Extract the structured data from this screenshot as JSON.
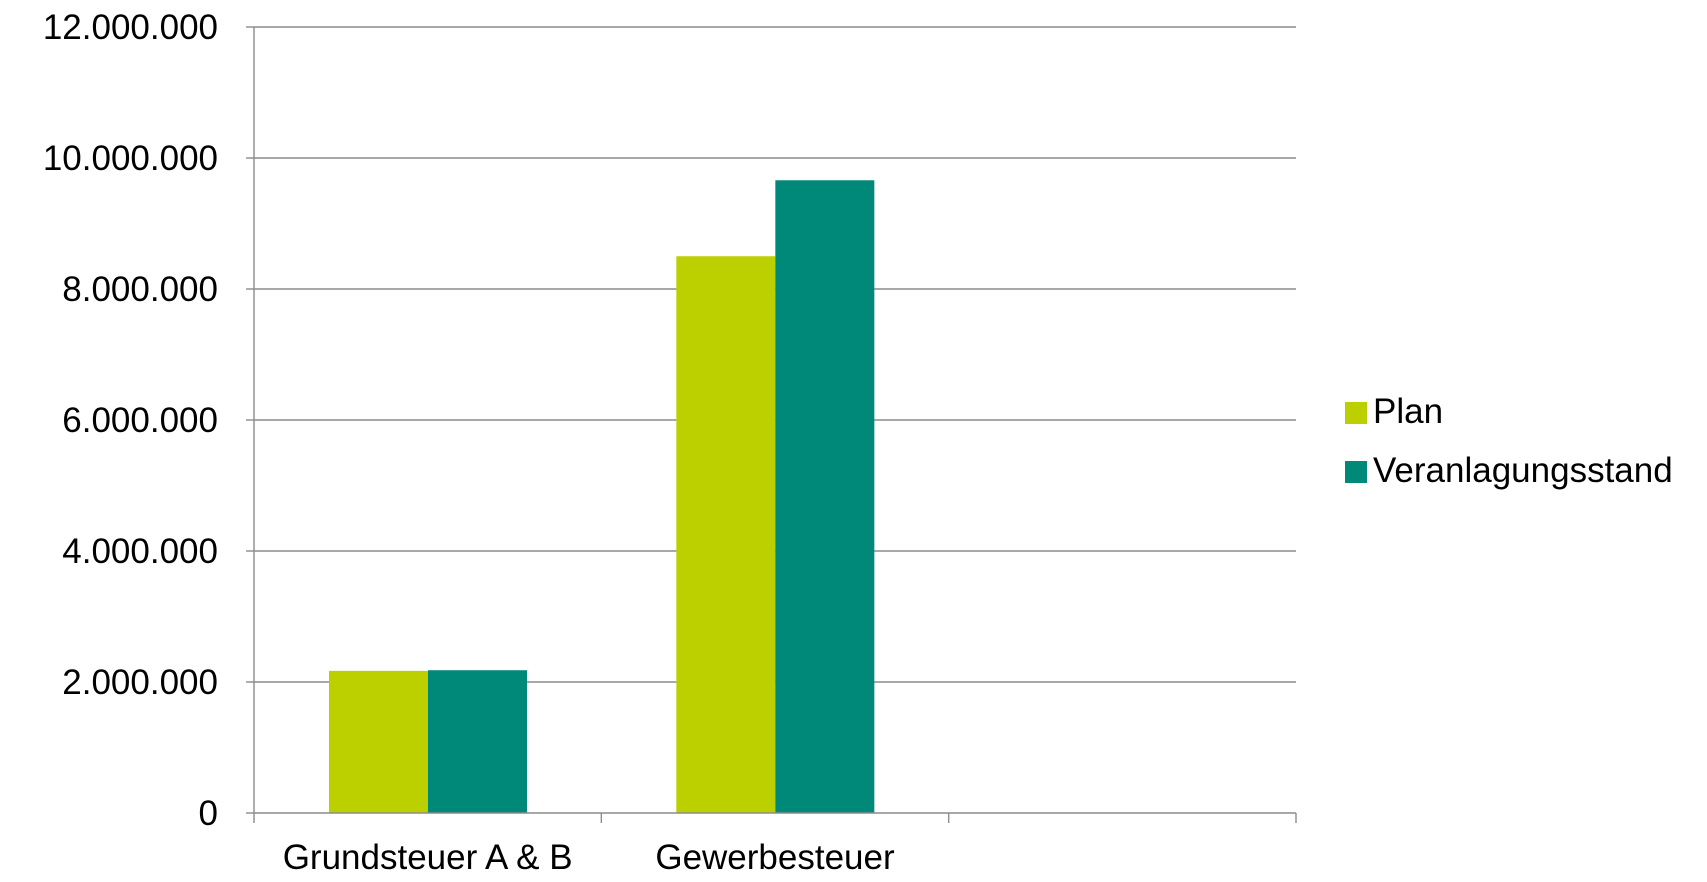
{
  "chart_data": {
    "type": "bar",
    "title": "",
    "xlabel": "",
    "ylabel": "",
    "categories": [
      "Grundsteuer A & B",
      "Gewerbesteuer",
      ""
    ],
    "series": [
      {
        "name": "Plan",
        "color": "#bcd000",
        "values": [
          2170000,
          8500000,
          null
        ]
      },
      {
        "name": "Veranlagungsstand",
        "color": "#008878",
        "values": [
          2180000,
          9660000,
          null
        ]
      }
    ],
    "ylim": [
      0,
      12000000
    ],
    "y_ticks": [
      0,
      2000000,
      4000000,
      6000000,
      8000000,
      10000000,
      12000000
    ],
    "y_tick_labels": [
      "0",
      "2.000.000",
      "4.000.000",
      "6.000.000",
      "8.000.000",
      "10.000.000",
      "12.000.000"
    ],
    "grid": true,
    "legend_position": "right"
  }
}
